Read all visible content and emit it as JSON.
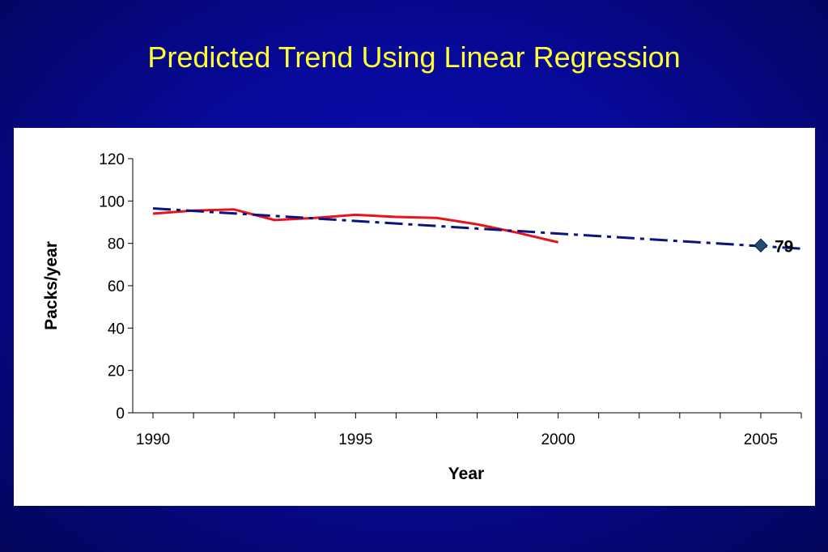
{
  "slide": {
    "title": "Predicted Trend Using Linear Regression"
  },
  "colors": {
    "background": "#06089a",
    "title": "#ffff33",
    "actual_line": "#e8141c",
    "trend_line": "#0a1480",
    "marker": "#1f4e79"
  },
  "chart_data": {
    "type": "line",
    "title": "",
    "xlabel": "Year",
    "ylabel": "Packs/year",
    "xlim": [
      1989.5,
      2006
    ],
    "ylim": [
      0,
      120
    ],
    "yticks": [
      0,
      20,
      40,
      60,
      80,
      100,
      120
    ],
    "xticks": [
      1990,
      1995,
      2000,
      2005
    ],
    "grid": false,
    "series": [
      {
        "style": "solid",
        "color": "#e8141c",
        "x": [
          1990,
          1991,
          1992,
          1993,
          1994,
          1995,
          1996,
          1997,
          1998,
          1999,
          2000
        ],
        "y": [
          94,
          95.5,
          96,
          91,
          92,
          93.5,
          92.5,
          92,
          89,
          85,
          80.5
        ]
      },
      {
        "style": "dash-dot",
        "color": "#0a1480",
        "x": [
          1990,
          2006
        ],
        "y": [
          96.5,
          77.5
        ]
      }
    ],
    "annotations": [
      {
        "x": 2005,
        "y": 79,
        "label": "79",
        "marker": "diamond"
      }
    ]
  }
}
